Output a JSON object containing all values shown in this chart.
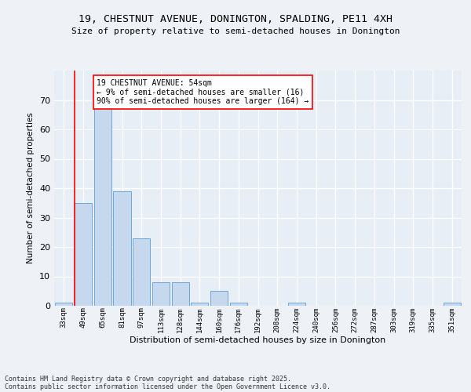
{
  "title1": "19, CHESTNUT AVENUE, DONINGTON, SPALDING, PE11 4XH",
  "title2": "Size of property relative to semi-detached houses in Donington",
  "xlabel": "Distribution of semi-detached houses by size in Donington",
  "ylabel": "Number of semi-detached properties",
  "bins": [
    "33sqm",
    "49sqm",
    "65sqm",
    "81sqm",
    "97sqm",
    "113sqm",
    "128sqm",
    "144sqm",
    "160sqm",
    "176sqm",
    "192sqm",
    "208sqm",
    "224sqm",
    "240sqm",
    "256sqm",
    "272sqm",
    "287sqm",
    "303sqm",
    "319sqm",
    "335sqm",
    "351sqm"
  ],
  "values": [
    1,
    35,
    68,
    39,
    23,
    8,
    8,
    1,
    5,
    1,
    0,
    0,
    1,
    0,
    0,
    0,
    0,
    0,
    0,
    0,
    1
  ],
  "bar_color": "#c5d8ed",
  "bar_edge_color": "#5a9fd4",
  "red_line_index": 1,
  "annotation_title": "19 CHESTNUT AVENUE: 54sqm",
  "annotation_line1": "← 9% of semi-detached houses are smaller (16)",
  "annotation_line2": "90% of semi-detached houses are larger (164) →",
  "annotation_box_color": "white",
  "annotation_box_edge": "red",
  "ylim": [
    0,
    80
  ],
  "yticks": [
    0,
    10,
    20,
    30,
    40,
    50,
    60,
    70
  ],
  "footer1": "Contains HM Land Registry data © Crown copyright and database right 2025.",
  "footer2": "Contains public sector information licensed under the Open Government Licence v3.0.",
  "bg_color": "#eef2f7",
  "plot_bg_color": "#e8eef5"
}
